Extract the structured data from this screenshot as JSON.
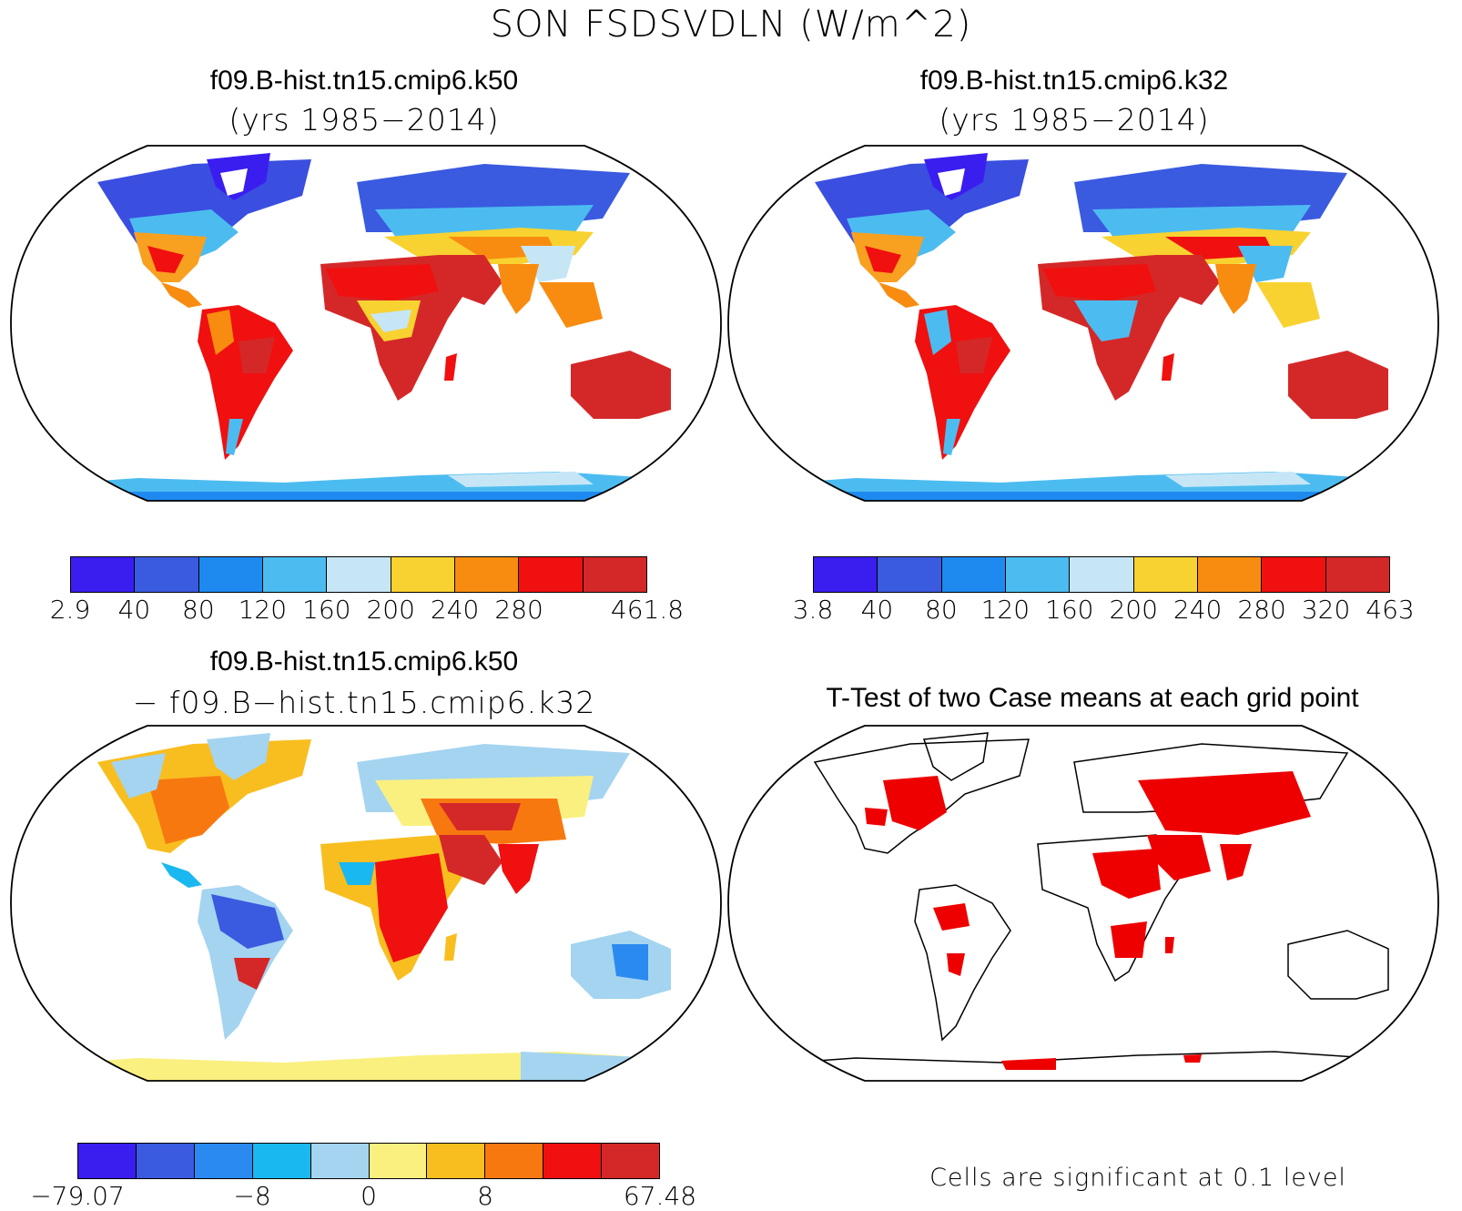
{
  "figure_title": "SON FSDSVDLN (W/m^2)",
  "panels": [
    {
      "title": "f09.B-hist.tn15.cmip6.k50",
      "subtitle": "(yrs 1985−2014)",
      "colorbar": {
        "colors": [
          "#3a1ef0",
          "#3a5ae0",
          "#1e8af0",
          "#4cbcf0",
          "#c6e6f6",
          "#f8d230",
          "#f88c10",
          "#f01010",
          "#d42828"
        ],
        "tick_labels": [
          "2.9",
          "40",
          "80",
          "120",
          "160",
          "200",
          "240",
          "280",
          "461.8"
        ]
      }
    },
    {
      "title": "f09.B-hist.tn15.cmip6.k32",
      "subtitle": "(yrs 1985−2014)",
      "colorbar": {
        "colors": [
          "#3a1ef0",
          "#3a5ae0",
          "#1e8af0",
          "#4cbcf0",
          "#c6e6f6",
          "#f8d230",
          "#f88c10",
          "#f01010",
          "#d42828"
        ],
        "tick_labels": [
          "3.8",
          "40",
          "80",
          "120",
          "160",
          "200",
          "240",
          "280",
          "320",
          "463"
        ]
      }
    },
    {
      "title": "f09.B-hist.tn15.cmip6.k50",
      "subtitle": "− f09.B−hist.tn15.cmip6.k32",
      "colorbar": {
        "colors": [
          "#3a1ef0",
          "#3a5ae0",
          "#2a8af0",
          "#1ab8f0",
          "#a4d4f0",
          "#faf080",
          "#f8be20",
          "#f87810",
          "#f01010",
          "#d42828"
        ],
        "tick_labels": [
          "−79.07",
          "−8",
          "0",
          "8",
          "67.48"
        ]
      }
    },
    {
      "title": "T-Test of two Case means at each grid point",
      "note": "Cells are significant at 0.1 level",
      "significant_color": "#ee0000"
    }
  ]
}
